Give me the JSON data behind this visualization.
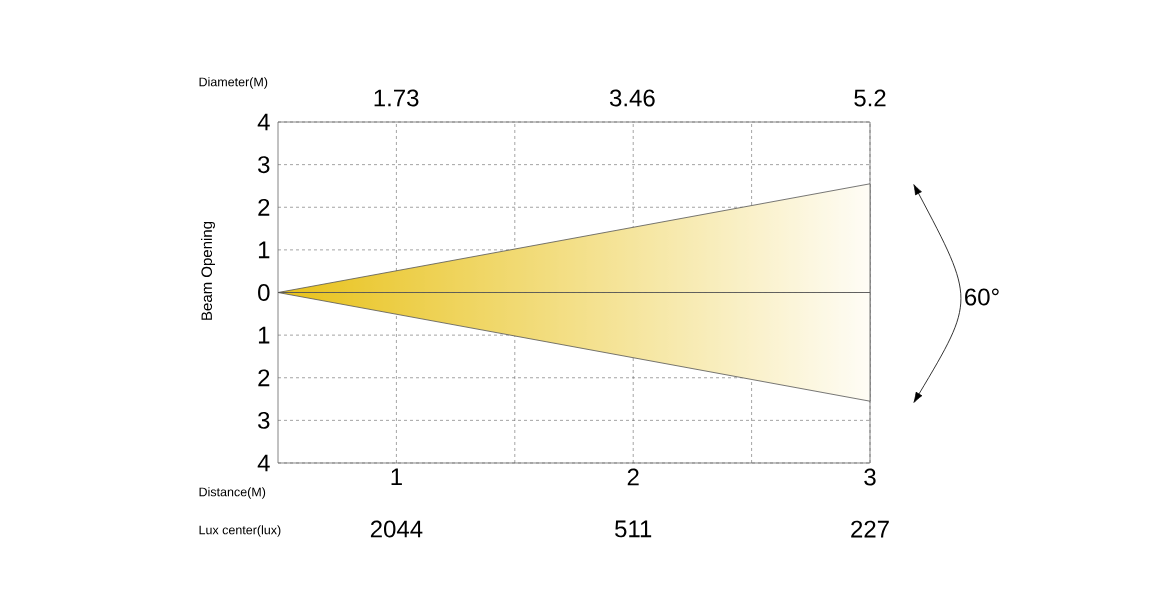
{
  "chart_data": {
    "type": "area",
    "xlabel": "Distance(M)",
    "ylabel": "Beam Opening",
    "x2label": "Diameter(M)",
    "xlim": [
      0.5,
      3
    ],
    "ylim": [
      -4,
      4
    ],
    "x2lim": [
      0.865,
      5.2
    ],
    "xticks": [
      {
        "value": 1,
        "label": "1"
      },
      {
        "value": 1.5,
        "label": null
      },
      {
        "value": 2,
        "label": "2"
      },
      {
        "value": 2.5,
        "label": null
      },
      {
        "value": 3,
        "label": "3"
      }
    ],
    "x2ticks": [
      1.73,
      3.46,
      5.2
    ],
    "yticks": [
      {
        "value": -4,
        "label": "4"
      },
      {
        "value": -3,
        "label": "3"
      },
      {
        "value": -2,
        "label": "2"
      },
      {
        "value": -1,
        "label": "1"
      },
      0,
      1,
      2,
      3,
      4
    ],
    "x": [
      0.5,
      3
    ],
    "series": [
      {
        "color": "#e8c21a",
        "values": [
          0,
          2.55
        ]
      },
      {
        "color": "#e8c21a",
        "values": [
          0,
          -2.55
        ]
      }
    ],
    "grid": true,
    "line_style": "solid",
    "marker": "none",
    "annotations": [
      "Lux center(lux)",
      "2044",
      "511",
      "227",
      "60°"
    ]
  }
}
